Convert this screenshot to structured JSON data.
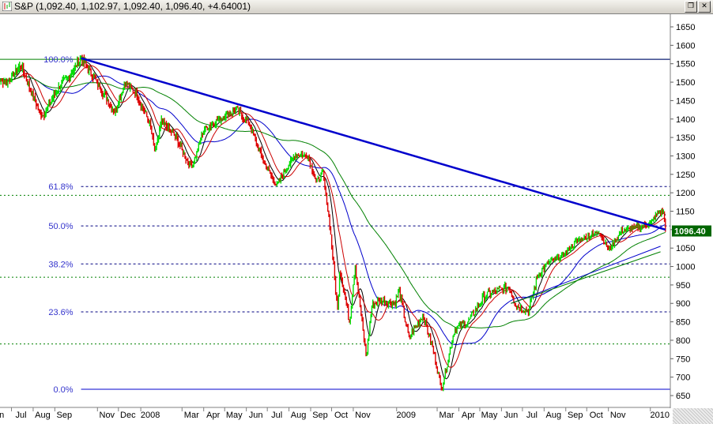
{
  "window": {
    "title": "S&P (1,092.40, 1,102.97, 1,092.40, 1,096.40, +4.64001)",
    "restore_glyph": "❐",
    "close_glyph": "✕",
    "icon": "chart-icon"
  },
  "chart_data": {
    "type": "candlestick",
    "instrument": "S&P",
    "last_price_label": "1096.40",
    "ylim": [
      620,
      1680
    ],
    "y_ticks": [
      650,
      700,
      750,
      800,
      850,
      900,
      950,
      1000,
      1050,
      1100,
      1150,
      1200,
      1250,
      1300,
      1350,
      1400,
      1450,
      1500,
      1550,
      1600,
      1650
    ],
    "x_labels": [
      "un",
      "Jul",
      "Aug",
      "Sep",
      "Nov",
      "Dec",
      "2008",
      "Mar",
      "Apr",
      "May",
      "Jun",
      "Jul",
      "Aug",
      "Sep",
      "Oct",
      "Nov",
      "2009",
      "Mar",
      "Apr",
      "May",
      "Jun",
      "Jul",
      "Aug",
      "Sep",
      "Oct",
      "Nov",
      "2010"
    ],
    "fibonacci": [
      {
        "label": "100.0%",
        "value": 1562
      },
      {
        "label": "61.8%",
        "value": 1217
      },
      {
        "label": "50.0%",
        "value": 1110
      },
      {
        "label": "38.2%",
        "value": 1007
      },
      {
        "label": "23.6%",
        "value": 877
      },
      {
        "label": "0.0%",
        "value": 667
      }
    ],
    "green_levels": [
      1562,
      1193,
      971,
      790
    ],
    "trendline": {
      "from": {
        "date": "2007-10-09",
        "value": 1565
      },
      "to": {
        "date": "2010-01-22",
        "value": 1100
      }
    },
    "blue_trend_2": {
      "from": {
        "date": "2009-06-15",
        "value": 900
      },
      "to": {
        "date": "2010-01-15",
        "value": 1055
      }
    },
    "green_trend_2": {
      "from": {
        "date": "2009-06-15",
        "value": 900
      },
      "to": {
        "date": "2010-01-15",
        "value": 1040
      }
    },
    "price_path": [
      [
        "2007-06-01",
        1515
      ],
      [
        "2007-06-25",
        1500
      ],
      [
        "2007-07-15",
        1545
      ],
      [
        "2007-08-10",
        1420
      ],
      [
        "2007-08-16",
        1410
      ],
      [
        "2007-09-05",
        1480
      ],
      [
        "2007-09-25",
        1525
      ],
      [
        "2007-10-09",
        1565
      ],
      [
        "2007-10-25",
        1520
      ],
      [
        "2007-11-10",
        1470
      ],
      [
        "2007-11-26",
        1420
      ],
      [
        "2007-12-11",
        1500
      ],
      [
        "2007-12-28",
        1465
      ],
      [
        "2008-01-15",
        1390
      ],
      [
        "2008-01-23",
        1310
      ],
      [
        "2008-02-01",
        1395
      ],
      [
        "2008-02-22",
        1350
      ],
      [
        "2008-03-10",
        1280
      ],
      [
        "2008-03-17",
        1275
      ],
      [
        "2008-04-01",
        1370
      ],
      [
        "2008-05-01",
        1410
      ],
      [
        "2008-05-19",
        1425
      ],
      [
        "2008-06-05",
        1390
      ],
      [
        "2008-06-27",
        1280
      ],
      [
        "2008-07-15",
        1220
      ],
      [
        "2008-07-25",
        1255
      ],
      [
        "2008-08-11",
        1305
      ],
      [
        "2008-08-28",
        1300
      ],
      [
        "2008-09-10",
        1230
      ],
      [
        "2008-09-19",
        1255
      ],
      [
        "2008-09-29",
        1110
      ],
      [
        "2008-10-10",
        880
      ],
      [
        "2008-10-13",
        1000
      ],
      [
        "2008-10-27",
        850
      ],
      [
        "2008-11-04",
        1005
      ],
      [
        "2008-11-20",
        752
      ],
      [
        "2008-11-28",
        895
      ],
      [
        "2008-12-10",
        910
      ],
      [
        "2008-12-31",
        900
      ],
      [
        "2009-01-06",
        934
      ],
      [
        "2009-01-20",
        805
      ],
      [
        "2009-02-09",
        870
      ],
      [
        "2009-02-25",
        765
      ],
      [
        "2009-03-06",
        680
      ],
      [
        "2009-03-09",
        676
      ],
      [
        "2009-03-26",
        830
      ],
      [
        "2009-04-15",
        850
      ],
      [
        "2009-05-08",
        920
      ],
      [
        "2009-06-12",
        945
      ],
      [
        "2009-06-23",
        895
      ],
      [
        "2009-07-10",
        880
      ],
      [
        "2009-07-24",
        980
      ],
      [
        "2009-08-07",
        1010
      ],
      [
        "2009-08-28",
        1030
      ],
      [
        "2009-09-18",
        1070
      ],
      [
        "2009-10-19",
        1095
      ],
      [
        "2009-11-02",
        1045
      ],
      [
        "2009-11-20",
        1095
      ],
      [
        "2009-12-10",
        1105
      ],
      [
        "2009-12-31",
        1115
      ],
      [
        "2010-01-11",
        1145
      ],
      [
        "2010-01-19",
        1150
      ],
      [
        "2010-01-22",
        1096
      ]
    ],
    "moving_averages": [
      {
        "color": "#000000",
        "span": 10
      },
      {
        "color": "#0000cc",
        "span": 50
      },
      {
        "color": "#cc0000",
        "span": 20
      },
      {
        "color": "#008000",
        "span": 100
      }
    ],
    "colors": {
      "up": "#00dd00",
      "down": "#dd0000",
      "trend": "#0000cc",
      "fib": "#000080",
      "green_level": "#008000",
      "label_box": "#006600"
    }
  }
}
